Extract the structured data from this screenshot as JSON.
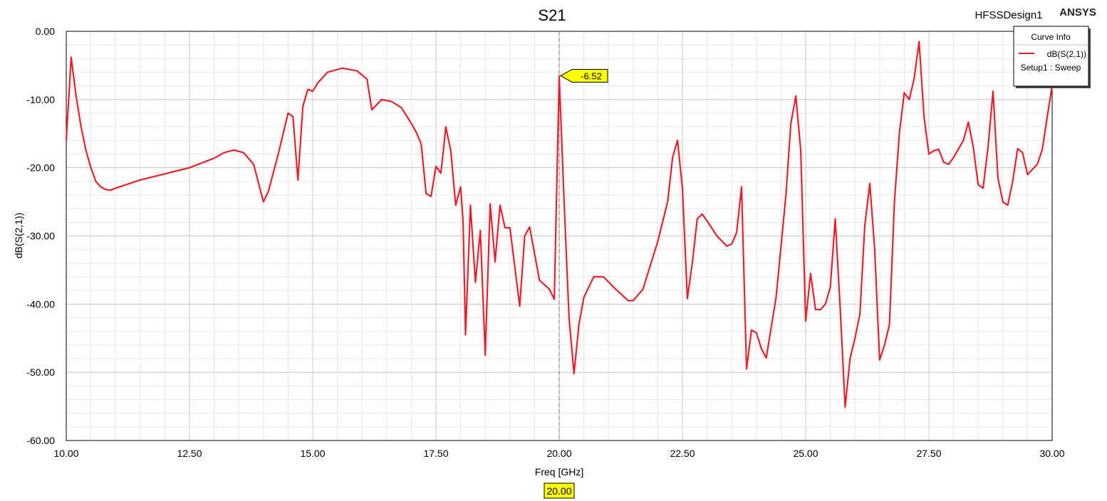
{
  "header": {
    "design_name": "HFSSDesign1",
    "brand": "ANSYS"
  },
  "legend": {
    "title": "Curve Info",
    "entries": [
      {
        "label": "dB(S(2,1))",
        "sub_label": "Setup1 : Sweep",
        "color": "#e8202a"
      }
    ]
  },
  "colors": {
    "curve": "#e8202a",
    "marker_fill": "#ffff00",
    "grid": "#c8c8c8",
    "minor_grid": "#e6e6e6"
  },
  "marker": {
    "x": 20.0,
    "y": -6.52,
    "value_label": "-6.52",
    "x_label": "20.00"
  },
  "chart_data": {
    "type": "line",
    "title": "S21",
    "xlabel": "Freq [GHz]",
    "ylabel": "dB(S(2,1))",
    "xlim": [
      10,
      30
    ],
    "ylim": [
      -60,
      0
    ],
    "grid": true,
    "legend_position": "top-right",
    "x_ticks": [
      10,
      12.5,
      15,
      17.5,
      20,
      22.5,
      25,
      27.5,
      30
    ],
    "x_tick_labels": [
      "10.00",
      "12.50",
      "15.00",
      "17.50",
      "20.00",
      "22.50",
      "25.00",
      "27.50",
      "30.00"
    ],
    "y_ticks": [
      0,
      -10,
      -20,
      -30,
      -40,
      -50,
      -60
    ],
    "y_tick_labels": [
      "0.00",
      "-10.00",
      "-20.00",
      "-30.00",
      "-40.00",
      "-50.00",
      "-60.00"
    ],
    "series": [
      {
        "name": "dB(S(2,1))",
        "x": [
          10.0,
          10.1,
          10.2,
          10.3,
          10.4,
          10.5,
          10.6,
          10.7,
          10.8,
          10.9,
          11.0,
          11.5,
          12.0,
          12.5,
          13.0,
          13.2,
          13.4,
          13.6,
          13.8,
          14.0,
          14.1,
          14.3,
          14.5,
          14.6,
          14.7,
          14.8,
          14.9,
          15.0,
          15.1,
          15.3,
          15.6,
          15.9,
          16.1,
          16.2,
          16.4,
          16.6,
          16.8,
          17.0,
          17.1,
          17.2,
          17.3,
          17.4,
          17.5,
          17.6,
          17.65,
          17.7,
          17.8,
          17.9,
          18.0,
          18.05,
          18.1,
          18.2,
          18.3,
          18.4,
          18.5,
          18.6,
          18.7,
          18.8,
          18.9,
          19.0,
          19.2,
          19.3,
          19.4,
          19.6,
          19.8,
          19.9,
          20.0,
          20.1,
          20.2,
          20.3,
          20.4,
          20.5,
          20.7,
          20.9,
          21.1,
          21.4,
          21.5,
          21.7,
          22.0,
          22.2,
          22.3,
          22.4,
          22.5,
          22.6,
          22.7,
          22.8,
          22.9,
          23.0,
          23.2,
          23.4,
          23.5,
          23.6,
          23.7,
          23.8,
          23.9,
          24.0,
          24.1,
          24.2,
          24.4,
          24.6,
          24.7,
          24.8,
          24.9,
          25.0,
          25.1,
          25.2,
          25.3,
          25.4,
          25.5,
          25.6,
          25.7,
          25.8,
          25.9,
          26.0,
          26.1,
          26.2,
          26.3,
          26.4,
          26.5,
          26.6,
          26.7,
          26.8,
          26.9,
          27.0,
          27.1,
          27.2,
          27.3,
          27.4,
          27.5,
          27.6,
          27.7,
          27.8,
          27.9,
          28.0,
          28.2,
          28.3,
          28.4,
          28.5,
          28.6,
          28.7,
          28.8,
          28.9,
          29.0,
          29.1,
          29.2,
          29.3,
          29.4,
          29.5,
          29.7,
          29.8,
          29.9,
          30.0
        ],
        "y": [
          -16.0,
          -3.8,
          -9.5,
          -14.0,
          -17.5,
          -20.0,
          -22.0,
          -22.8,
          -23.2,
          -23.3,
          -23.0,
          -21.8,
          -20.9,
          -20.0,
          -18.6,
          -17.8,
          -17.4,
          -17.8,
          -19.5,
          -25.0,
          -23.5,
          -18.0,
          -12.0,
          -12.5,
          -21.8,
          -11.0,
          -8.5,
          -8.8,
          -7.6,
          -6.0,
          -5.4,
          -5.8,
          -7.0,
          -11.5,
          -10.0,
          -10.3,
          -11.2,
          -13.5,
          -14.8,
          -16.5,
          -23.8,
          -24.2,
          -19.8,
          -20.8,
          -17.5,
          -14.0,
          -17.5,
          -25.5,
          -22.8,
          -28.0,
          -44.5,
          -25.5,
          -36.8,
          -29.2,
          -47.5,
          -25.3,
          -33.8,
          -25.5,
          -28.8,
          -28.8,
          -40.3,
          -30.0,
          -28.7,
          -36.5,
          -37.8,
          -39.3,
          -6.52,
          -25.0,
          -42.0,
          -50.2,
          -43.0,
          -39.0,
          -36.0,
          -36.0,
          -37.5,
          -39.5,
          -39.5,
          -37.8,
          -30.8,
          -25.0,
          -18.5,
          -16.0,
          -23.0,
          -39.2,
          -34.0,
          -27.5,
          -26.8,
          -27.8,
          -30.0,
          -31.5,
          -31.2,
          -29.5,
          -22.8,
          -49.5,
          -43.8,
          -44.2,
          -46.5,
          -47.9,
          -39.0,
          -24.0,
          -13.5,
          -9.5,
          -17.5,
          -42.5,
          -35.5,
          -40.8,
          -40.8,
          -40.0,
          -37.5,
          -27.5,
          -40.5,
          -55.1,
          -48.0,
          -45.0,
          -41.5,
          -28.5,
          -22.3,
          -32.0,
          -48.2,
          -46.0,
          -43.0,
          -25.0,
          -15.0,
          -9.0,
          -10.0,
          -7.0,
          -1.5,
          -12.5,
          -18.0,
          -17.5,
          -17.3,
          -19.2,
          -19.5,
          -18.5,
          -16.0,
          -13.3,
          -17.0,
          -22.5,
          -23.0,
          -17.0,
          -8.8,
          -21.5,
          -25.0,
          -25.5,
          -22.0,
          -17.2,
          -17.8,
          -21.0,
          -19.5,
          -17.3,
          -12.5,
          -8.0
        ]
      }
    ]
  }
}
